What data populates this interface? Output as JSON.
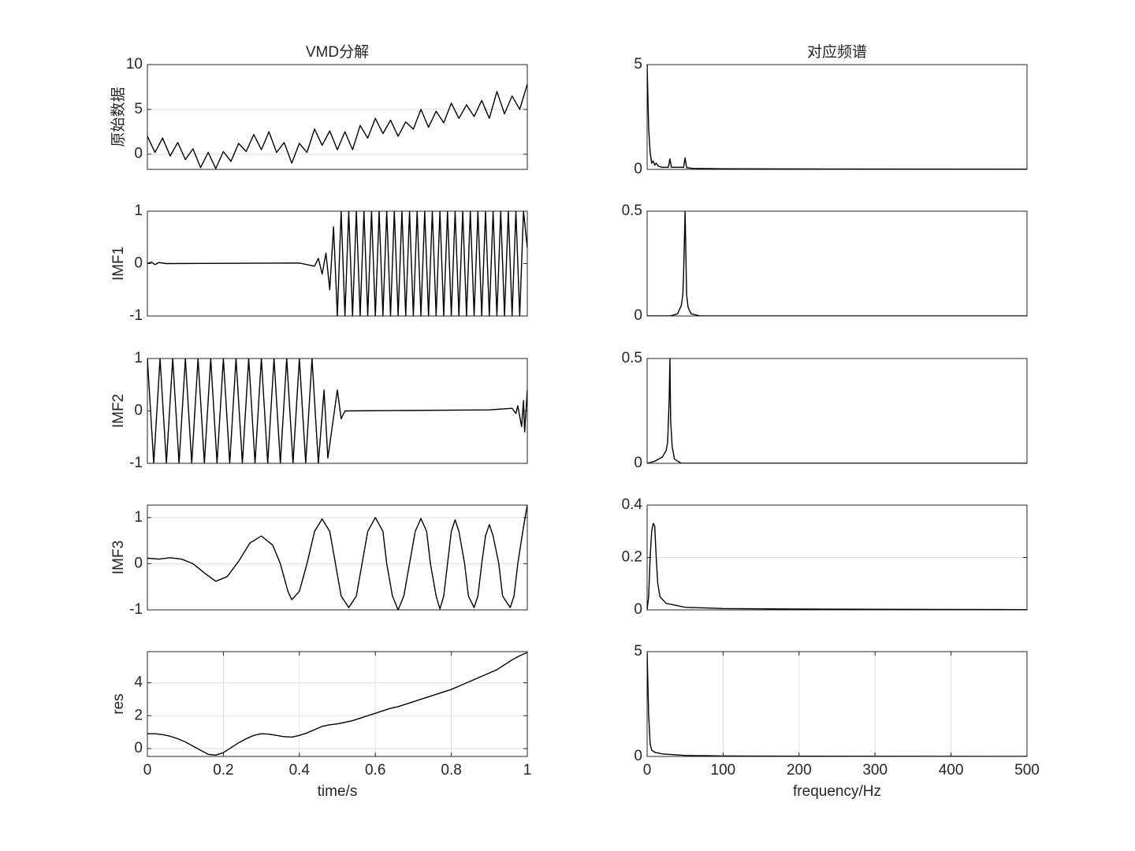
{
  "chart_data": [
    {
      "type": "line",
      "title": "VMD分解",
      "ylabel": "原始数据",
      "color": "#000000",
      "grid": "y",
      "xlim": [
        0,
        1
      ],
      "ylim": [
        -1.7,
        10
      ],
      "yticks": [
        0,
        5,
        10
      ],
      "x": [
        0,
        0.02,
        0.04,
        0.06,
        0.08,
        0.1,
        0.12,
        0.14,
        0.16,
        0.18,
        0.2,
        0.22,
        0.24,
        0.26,
        0.28,
        0.3,
        0.32,
        0.34,
        0.36,
        0.38,
        0.4,
        0.42,
        0.44,
        0.46,
        0.48,
        0.5,
        0.52,
        0.54,
        0.56,
        0.58,
        0.6,
        0.62,
        0.64,
        0.66,
        0.68,
        0.7,
        0.72,
        0.74,
        0.76,
        0.78,
        0.8,
        0.82,
        0.84,
        0.86,
        0.88,
        0.9,
        0.92,
        0.94,
        0.96,
        0.98,
        1
      ],
      "values": [
        2.0,
        0.2,
        1.8,
        -0.2,
        1.3,
        -0.6,
        0.6,
        -1.5,
        0.2,
        -1.6,
        0.3,
        -0.8,
        1.2,
        0.3,
        2.2,
        0.5,
        2.5,
        0.2,
        1.3,
        -1.0,
        1.2,
        0.2,
        2.8,
        1.0,
        2.6,
        0.5,
        2.5,
        0.5,
        3.2,
        1.8,
        4.0,
        2.3,
        3.8,
        2.0,
        3.6,
        2.8,
        5.0,
        3.0,
        4.8,
        3.5,
        5.7,
        4.0,
        5.5,
        4.2,
        6.0,
        4.0,
        7.0,
        4.5,
        6.5,
        5.0,
        7.8
      ]
    },
    {
      "type": "line",
      "ylabel": "IMF1",
      "color": "#000000",
      "xlim": [
        0,
        1
      ],
      "ylim": [
        -1,
        1
      ],
      "yticks": [
        -1,
        0,
        1
      ],
      "x": [
        0,
        0.01,
        0.02,
        0.03,
        0.05,
        0.4,
        0.44,
        0.45,
        0.46,
        0.47,
        0.48,
        0.49,
        0.5,
        0.51,
        0.52,
        0.53,
        0.54,
        0.55,
        0.56,
        0.57,
        0.58,
        0.59,
        0.6,
        0.61,
        0.62,
        0.63,
        0.64,
        0.65,
        0.66,
        0.67,
        0.68,
        0.69,
        0.7,
        0.71,
        0.72,
        0.73,
        0.74,
        0.75,
        0.76,
        0.77,
        0.78,
        0.79,
        0.8,
        0.81,
        0.82,
        0.83,
        0.84,
        0.85,
        0.86,
        0.87,
        0.88,
        0.89,
        0.9,
        0.91,
        0.92,
        0.93,
        0.94,
        0.95,
        0.96,
        0.97,
        0.98,
        0.99,
        1
      ],
      "values": [
        0,
        0.03,
        -0.02,
        0.02,
        0,
        0.01,
        -0.05,
        0.1,
        -0.2,
        0.2,
        -0.5,
        0.7,
        -1,
        1,
        -1,
        1,
        -1,
        1,
        -1,
        1,
        -1,
        1,
        -1,
        1,
        -1,
        1,
        -1,
        1,
        -1,
        1,
        -1,
        1,
        -1,
        1,
        -1,
        1,
        -1,
        1,
        -1,
        1,
        -1,
        1,
        -1,
        1,
        -1,
        1,
        -1,
        1,
        -1,
        1,
        -1,
        1,
        -1,
        1,
        -1,
        1,
        -1,
        1,
        -1,
        1,
        -1,
        1,
        0.3
      ]
    },
    {
      "type": "line",
      "ylabel": "IMF2",
      "color": "#000000",
      "xlim": [
        0,
        1
      ],
      "ylim": [
        -1,
        1
      ],
      "yticks": [
        -1,
        0,
        1
      ],
      "x": [
        0,
        0.0167,
        0.0333,
        0.05,
        0.0667,
        0.0833,
        0.1,
        0.1167,
        0.1333,
        0.15,
        0.1667,
        0.1833,
        0.2,
        0.2167,
        0.2333,
        0.25,
        0.2667,
        0.2833,
        0.3,
        0.3167,
        0.3333,
        0.35,
        0.3667,
        0.3833,
        0.4,
        0.4167,
        0.4333,
        0.45,
        0.465,
        0.475,
        0.5,
        0.51,
        0.52,
        0.9,
        0.96,
        0.97,
        0.975,
        0.985,
        0.99,
        0.993,
        1
      ],
      "values": [
        1,
        -1,
        1,
        -1,
        1,
        -1,
        1,
        -1,
        1,
        -1,
        1,
        -1,
        1,
        -1,
        1,
        -1,
        1,
        -1,
        1,
        -1,
        1,
        -1,
        1,
        -1,
        1,
        -1,
        1,
        -1,
        0.4,
        -0.9,
        0.4,
        -0.15,
        0,
        0.02,
        0.05,
        -0.05,
        0.1,
        -0.3,
        0.2,
        -0.4,
        0.4
      ]
    },
    {
      "type": "line",
      "ylabel": "IMF3",
      "color": "#000000",
      "grid": "y",
      "xlim": [
        0,
        1
      ],
      "ylim": [
        -1,
        1.27
      ],
      "yticks": [
        -1,
        0,
        1
      ],
      "x": [
        0,
        0.03,
        0.06,
        0.09,
        0.12,
        0.15,
        0.18,
        0.21,
        0.24,
        0.27,
        0.3,
        0.33,
        0.35,
        0.37,
        0.38,
        0.4,
        0.42,
        0.44,
        0.46,
        0.48,
        0.495,
        0.51,
        0.53,
        0.55,
        0.565,
        0.58,
        0.6,
        0.62,
        0.63,
        0.645,
        0.66,
        0.675,
        0.69,
        0.705,
        0.72,
        0.735,
        0.745,
        0.76,
        0.77,
        0.78,
        0.79,
        0.8,
        0.81,
        0.82,
        0.835,
        0.845,
        0.86,
        0.87,
        0.88,
        0.89,
        0.9,
        0.91,
        0.925,
        0.935,
        0.955,
        0.965,
        0.975,
        0.99,
        1
      ],
      "values": [
        0.12,
        0.1,
        0.13,
        0.1,
        0,
        -0.2,
        -0.38,
        -0.28,
        0.05,
        0.45,
        0.6,
        0.4,
        0,
        -0.6,
        -0.78,
        -0.6,
        0,
        0.7,
        0.97,
        0.7,
        0,
        -0.7,
        -0.95,
        -0.7,
        0,
        0.7,
        1.0,
        0.7,
        0,
        -0.7,
        -1.0,
        -0.7,
        0,
        0.7,
        0.98,
        0.7,
        0,
        -0.7,
        -0.98,
        -0.7,
        0,
        0.7,
        0.95,
        0.7,
        0,
        -0.7,
        -0.95,
        -0.7,
        0,
        0.6,
        0.85,
        0.6,
        0,
        -0.7,
        -0.95,
        -0.7,
        0,
        0.8,
        1.27
      ]
    },
    {
      "type": "line",
      "ylabel": "res",
      "xlabel": "time/s",
      "color": "#000000",
      "grid": "both",
      "xlim": [
        0,
        1
      ],
      "ylim": [
        -0.48,
        5.9
      ],
      "yticks": [
        0,
        2,
        4
      ],
      "xticks": [
        0,
        0.2,
        0.4,
        0.6,
        0.8,
        1
      ],
      "x": [
        0,
        0.02,
        0.04,
        0.06,
        0.08,
        0.1,
        0.12,
        0.14,
        0.16,
        0.18,
        0.2,
        0.22,
        0.24,
        0.26,
        0.28,
        0.3,
        0.32,
        0.34,
        0.36,
        0.38,
        0.4,
        0.42,
        0.44,
        0.46,
        0.48,
        0.5,
        0.52,
        0.54,
        0.56,
        0.58,
        0.6,
        0.62,
        0.64,
        0.66,
        0.68,
        0.7,
        0.72,
        0.74,
        0.76,
        0.78,
        0.8,
        0.82,
        0.84,
        0.86,
        0.88,
        0.9,
        0.92,
        0.94,
        0.96,
        0.98,
        1
      ],
      "values": [
        0.9,
        0.9,
        0.85,
        0.75,
        0.6,
        0.4,
        0.15,
        -0.1,
        -0.35,
        -0.4,
        -0.25,
        0.05,
        0.35,
        0.6,
        0.8,
        0.9,
        0.88,
        0.8,
        0.72,
        0.7,
        0.8,
        0.95,
        1.15,
        1.35,
        1.45,
        1.5,
        1.6,
        1.7,
        1.85,
        2.0,
        2.15,
        2.3,
        2.45,
        2.55,
        2.7,
        2.85,
        3.0,
        3.15,
        3.3,
        3.45,
        3.6,
        3.8,
        4.0,
        4.2,
        4.4,
        4.6,
        4.8,
        5.1,
        5.4,
        5.65,
        5.85
      ]
    },
    {
      "type": "line",
      "title": "对应频谱",
      "color": "#000000",
      "xlim": [
        0,
        500
      ],
      "ylim": [
        0,
        5
      ],
      "yticks": [
        0,
        5
      ],
      "x": [
        0,
        2,
        4,
        6,
        8,
        10,
        12,
        15,
        20,
        28,
        30,
        32,
        45,
        48,
        50,
        52,
        60,
        100,
        200,
        500
      ],
      "values": [
        5,
        2,
        0.8,
        0.3,
        0.4,
        0.2,
        0.3,
        0.15,
        0.1,
        0.1,
        0.5,
        0.1,
        0.1,
        0.1,
        0.55,
        0.08,
        0.05,
        0.03,
        0.02,
        0.01
      ]
    },
    {
      "type": "line",
      "color": "#000000",
      "xlim": [
        0,
        500
      ],
      "ylim": [
        0,
        0.5
      ],
      "yticks": [
        0,
        0.5
      ],
      "x": [
        0,
        30,
        40,
        45,
        47,
        48,
        49,
        50,
        51,
        52,
        54,
        58,
        70,
        500
      ],
      "values": [
        0,
        0,
        0.01,
        0.05,
        0.1,
        0.2,
        0.35,
        0.5,
        0.3,
        0.1,
        0.04,
        0.01,
        0,
        0
      ]
    },
    {
      "type": "line",
      "color": "#000000",
      "xlim": [
        0,
        500
      ],
      "ylim": [
        0,
        0.5
      ],
      "yticks": [
        0,
        0.5
      ],
      "x": [
        0,
        10,
        20,
        25,
        27,
        29,
        30,
        31,
        33,
        36,
        45,
        500
      ],
      "values": [
        0,
        0.01,
        0.03,
        0.06,
        0.1,
        0.3,
        0.5,
        0.2,
        0.08,
        0.02,
        0,
        0
      ]
    },
    {
      "type": "line",
      "color": "#000000",
      "grid": "y",
      "xlim": [
        0,
        500
      ],
      "ylim": [
        0,
        0.4
      ],
      "yticks": [
        0,
        0.2,
        0.4
      ],
      "x": [
        0,
        2,
        4,
        6,
        8,
        10,
        12,
        14,
        17,
        25,
        50,
        100,
        200,
        500
      ],
      "values": [
        0,
        0.05,
        0.2,
        0.3,
        0.33,
        0.32,
        0.2,
        0.1,
        0.05,
        0.025,
        0.01,
        0.005,
        0.003,
        0.001
      ]
    },
    {
      "type": "line",
      "xlabel": "frequency/Hz",
      "color": "#000000",
      "grid": "x",
      "xlim": [
        0,
        500
      ],
      "ylim": [
        0,
        5
      ],
      "yticks": [
        0,
        5
      ],
      "xticks": [
        0,
        100,
        200,
        300,
        400,
        500
      ],
      "x": [
        0,
        2,
        4,
        6,
        10,
        20,
        50,
        100,
        200,
        500
      ],
      "values": [
        5,
        2,
        0.6,
        0.3,
        0.2,
        0.12,
        0.05,
        0.02,
        0.01,
        0
      ]
    }
  ]
}
